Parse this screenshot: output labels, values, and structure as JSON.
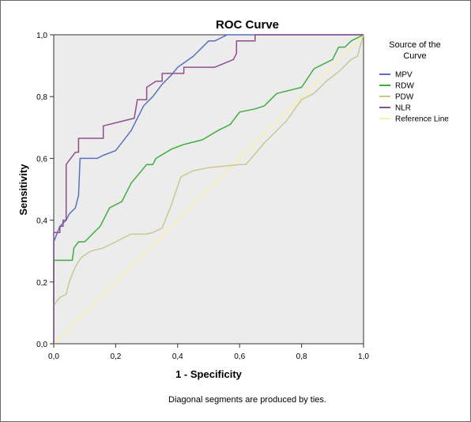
{
  "chart_data": {
    "type": "line",
    "title": "ROC Curve",
    "xlabel": "1 - Specificity",
    "ylabel": "Sensitivity",
    "xlim": [
      0,
      1
    ],
    "ylim": [
      0,
      1
    ],
    "x_ticks": [
      "0,0",
      "0,2",
      "0,4",
      "0,6",
      "0,8",
      "1,0"
    ],
    "y_ticks": [
      "0,0",
      "0,2",
      "0,4",
      "0,6",
      "0,8",
      "1,0"
    ],
    "grid": false,
    "background": "#ececec",
    "legend_title": "Source of the Curve",
    "legend_position": "right",
    "footnote": "Diagonal segments are produced by ties.",
    "series": [
      {
        "name": "MPV",
        "color": "#5b6fbf",
        "points": [
          [
            0,
            0
          ],
          [
            0,
            0.33
          ],
          [
            0.02,
            0.38
          ],
          [
            0.04,
            0.4
          ],
          [
            0.05,
            0.42
          ],
          [
            0.07,
            0.44
          ],
          [
            0.08,
            0.48
          ],
          [
            0.085,
            0.6
          ],
          [
            0.12,
            0.6
          ],
          [
            0.14,
            0.6
          ],
          [
            0.16,
            0.61
          ],
          [
            0.2,
            0.625
          ],
          [
            0.25,
            0.69
          ],
          [
            0.29,
            0.77
          ],
          [
            0.32,
            0.8
          ],
          [
            0.35,
            0.84
          ],
          [
            0.38,
            0.87
          ],
          [
            0.4,
            0.895
          ],
          [
            0.45,
            0.93
          ],
          [
            0.5,
            0.98
          ],
          [
            0.52,
            0.98
          ],
          [
            0.56,
            1.0
          ],
          [
            0.6,
            1.0
          ],
          [
            1.0,
            1.0
          ]
        ]
      },
      {
        "name": "RDW",
        "color": "#3fad3f",
        "points": [
          [
            0,
            0
          ],
          [
            0,
            0.27
          ],
          [
            0.02,
            0.27
          ],
          [
            0.04,
            0.27
          ],
          [
            0.06,
            0.27
          ],
          [
            0.065,
            0.31
          ],
          [
            0.08,
            0.33
          ],
          [
            0.1,
            0.33
          ],
          [
            0.12,
            0.35
          ],
          [
            0.15,
            0.38
          ],
          [
            0.18,
            0.44
          ],
          [
            0.22,
            0.46
          ],
          [
            0.25,
            0.52
          ],
          [
            0.3,
            0.58
          ],
          [
            0.32,
            0.58
          ],
          [
            0.33,
            0.6
          ],
          [
            0.38,
            0.63
          ],
          [
            0.42,
            0.645
          ],
          [
            0.48,
            0.66
          ],
          [
            0.53,
            0.69
          ],
          [
            0.57,
            0.71
          ],
          [
            0.6,
            0.75
          ],
          [
            0.65,
            0.76
          ],
          [
            0.68,
            0.77
          ],
          [
            0.72,
            0.81
          ],
          [
            0.8,
            0.83
          ],
          [
            0.84,
            0.89
          ],
          [
            0.9,
            0.92
          ],
          [
            0.92,
            0.96
          ],
          [
            0.94,
            0.96
          ],
          [
            0.96,
            0.98
          ],
          [
            1.0,
            1.0
          ]
        ]
      },
      {
        "name": "PDW",
        "color": "#c9c98f",
        "points": [
          [
            0,
            0
          ],
          [
            0,
            0.125
          ],
          [
            0.02,
            0.15
          ],
          [
            0.04,
            0.16
          ],
          [
            0.05,
            0.2
          ],
          [
            0.07,
            0.25
          ],
          [
            0.09,
            0.28
          ],
          [
            0.12,
            0.3
          ],
          [
            0.16,
            0.31
          ],
          [
            0.2,
            0.33
          ],
          [
            0.25,
            0.355
          ],
          [
            0.3,
            0.355
          ],
          [
            0.32,
            0.36
          ],
          [
            0.35,
            0.375
          ],
          [
            0.38,
            0.45
          ],
          [
            0.41,
            0.54
          ],
          [
            0.45,
            0.56
          ],
          [
            0.5,
            0.57
          ],
          [
            0.6,
            0.58
          ],
          [
            0.62,
            0.58
          ],
          [
            0.68,
            0.65
          ],
          [
            0.75,
            0.72
          ],
          [
            0.8,
            0.79
          ],
          [
            0.84,
            0.81
          ],
          [
            0.88,
            0.85
          ],
          [
            0.92,
            0.88
          ],
          [
            0.96,
            0.92
          ],
          [
            0.98,
            0.93
          ],
          [
            1.0,
            1.0
          ]
        ]
      },
      {
        "name": "NLR",
        "color": "#8e4e8e",
        "points": [
          [
            0,
            0
          ],
          [
            0,
            0.36
          ],
          [
            0.02,
            0.36
          ],
          [
            0.02,
            0.38
          ],
          [
            0.03,
            0.38
          ],
          [
            0.03,
            0.4
          ],
          [
            0.04,
            0.4
          ],
          [
            0.04,
            0.58
          ],
          [
            0.07,
            0.62
          ],
          [
            0.08,
            0.62
          ],
          [
            0.08,
            0.665
          ],
          [
            0.16,
            0.665
          ],
          [
            0.16,
            0.705
          ],
          [
            0.2,
            0.715
          ],
          [
            0.26,
            0.73
          ],
          [
            0.27,
            0.79
          ],
          [
            0.3,
            0.79
          ],
          [
            0.3,
            0.83
          ],
          [
            0.33,
            0.85
          ],
          [
            0.35,
            0.85
          ],
          [
            0.35,
            0.875
          ],
          [
            0.42,
            0.875
          ],
          [
            0.42,
            0.895
          ],
          [
            0.52,
            0.895
          ],
          [
            0.58,
            0.92
          ],
          [
            0.59,
            0.94
          ],
          [
            0.59,
            0.98
          ],
          [
            0.65,
            0.98
          ],
          [
            0.65,
            1.0
          ],
          [
            1.0,
            1.0
          ]
        ]
      },
      {
        "name": "Reference Line",
        "color": "#f7f0a6",
        "points": [
          [
            0,
            0
          ],
          [
            1,
            1
          ]
        ]
      }
    ]
  }
}
